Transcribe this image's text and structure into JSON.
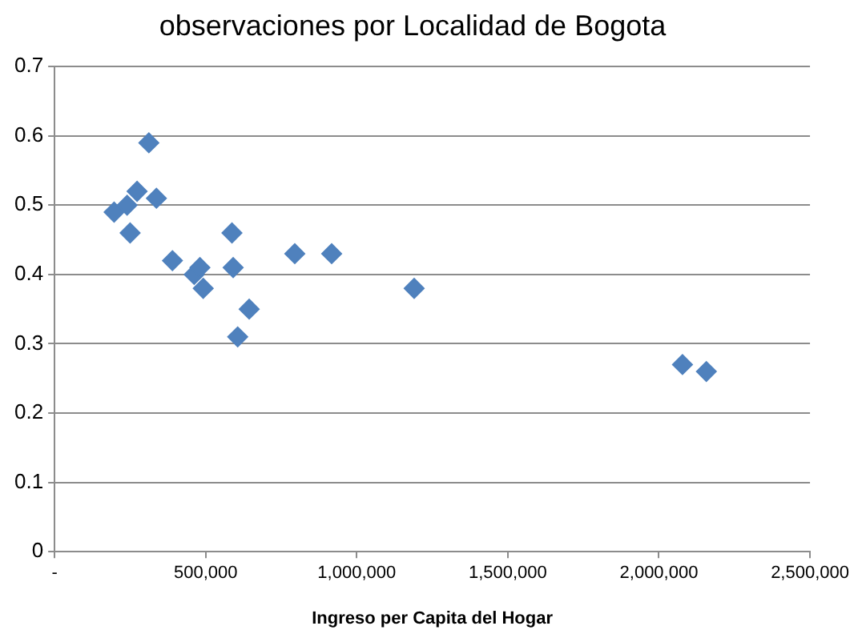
{
  "chart_data": {
    "type": "scatter",
    "title": "observaciones por Localidad de Bogota",
    "xlabel": "Ingreso per Capita del Hogar",
    "x": [
      197000,
      240000,
      273000,
      250000,
      312000,
      337000,
      390000,
      462000,
      481000,
      492000,
      587000,
      591000,
      606000,
      644000,
      795000,
      917000,
      1190000,
      2078000,
      2157000
    ],
    "values": [
      0.49,
      0.5,
      0.52,
      0.46,
      0.59,
      0.51,
      0.42,
      0.4,
      0.41,
      0.38,
      0.46,
      0.41,
      0.31,
      0.35,
      0.43,
      0.43,
      0.38,
      0.27,
      0.26
    ],
    "color": "#4f81bd",
    "marker": "diamond",
    "grid": "y",
    "legend": false,
    "xlim": [
      0,
      2500000
    ],
    "xticks": [
      {
        "value": 0,
        "label": "-"
      },
      {
        "value": 500000,
        "label": "500,000"
      },
      {
        "value": 1000000,
        "label": "1,000,000"
      },
      {
        "value": 1500000,
        "label": "1,500,000"
      },
      {
        "value": 2000000,
        "label": "2,000,000"
      },
      {
        "value": 2500000,
        "label": "2,500,000"
      }
    ],
    "ylim": [
      0,
      0.7
    ],
    "yticks": [
      0,
      0.1,
      0.2,
      0.3,
      0.4,
      0.5,
      0.6,
      0.7
    ]
  }
}
